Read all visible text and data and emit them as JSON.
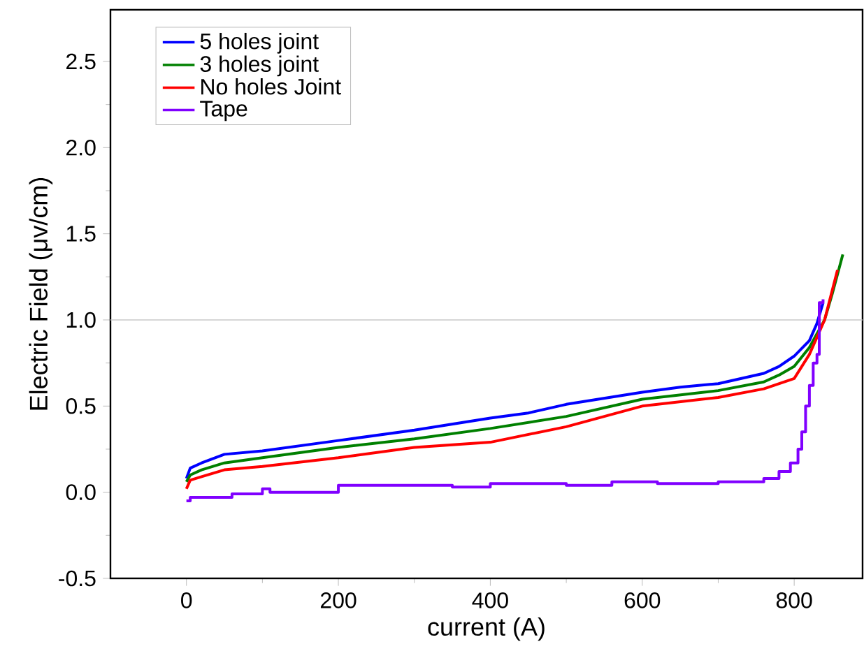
{
  "chart_data": {
    "type": "line",
    "xlabel": "current (A)",
    "ylabel": "Electric Field (μv/cm)",
    "xlim": [
      -100,
      890
    ],
    "ylim": [
      -0.5,
      2.8
    ],
    "xticks": [
      0,
      200,
      400,
      600,
      800
    ],
    "yticks": [
      -0.5,
      {
        "value": 0,
        "label": "0.0"
      },
      0.5,
      {
        "value": 1,
        "label": "1.0"
      },
      1.5,
      {
        "value": 2,
        "label": "2.0"
      },
      2.5
    ],
    "legend": "top left",
    "ref_lines": [
      {
        "axis": "y",
        "value": 1.0,
        "color": "#c8c8c8"
      }
    ],
    "series": [
      {
        "name": "5 holes joint",
        "color": "#0000ff",
        "x": [
          0,
          5,
          20,
          50,
          100,
          200,
          300,
          400,
          450,
          500,
          600,
          650,
          700,
          760,
          780,
          800,
          820,
          830,
          838
        ],
        "values": [
          0.08,
          0.14,
          0.17,
          0.22,
          0.24,
          0.3,
          0.36,
          0.43,
          0.46,
          0.51,
          0.58,
          0.61,
          0.63,
          0.69,
          0.73,
          0.79,
          0.88,
          0.98,
          1.1
        ]
      },
      {
        "name": "3 holes joint",
        "color": "#008000",
        "x": [
          0,
          5,
          20,
          50,
          100,
          200,
          300,
          400,
          500,
          600,
          700,
          760,
          780,
          800,
          820,
          840,
          850,
          864
        ],
        "values": [
          0.06,
          0.1,
          0.13,
          0.17,
          0.2,
          0.26,
          0.31,
          0.37,
          0.44,
          0.54,
          0.59,
          0.64,
          0.68,
          0.73,
          0.84,
          1.0,
          1.15,
          1.38
        ]
      },
      {
        "name": "No holes Joint",
        "color": "#ff0000",
        "x": [
          0,
          5,
          20,
          50,
          100,
          200,
          300,
          400,
          500,
          600,
          700,
          760,
          780,
          800,
          820,
          840,
          857
        ],
        "values": [
          0.02,
          0.07,
          0.09,
          0.13,
          0.15,
          0.2,
          0.26,
          0.29,
          0.38,
          0.5,
          0.55,
          0.6,
          0.63,
          0.66,
          0.8,
          1.0,
          1.29
        ]
      },
      {
        "name": "Tape",
        "type": "step",
        "color": "#8000ff",
        "x": [
          0,
          5,
          50,
          60,
          100,
          110,
          200,
          300,
          350,
          400,
          500,
          560,
          620,
          640,
          700,
          760,
          780,
          795,
          805,
          810,
          815,
          820,
          825,
          830,
          833,
          838
        ],
        "values": [
          -0.05,
          -0.03,
          -0.03,
          -0.01,
          0.02,
          0.0,
          0.04,
          0.04,
          0.03,
          0.05,
          0.04,
          0.06,
          0.05,
          0.05,
          0.06,
          0.08,
          0.12,
          0.17,
          0.25,
          0.35,
          0.5,
          0.62,
          0.75,
          0.8,
          1.1,
          1.12
        ]
      }
    ]
  }
}
